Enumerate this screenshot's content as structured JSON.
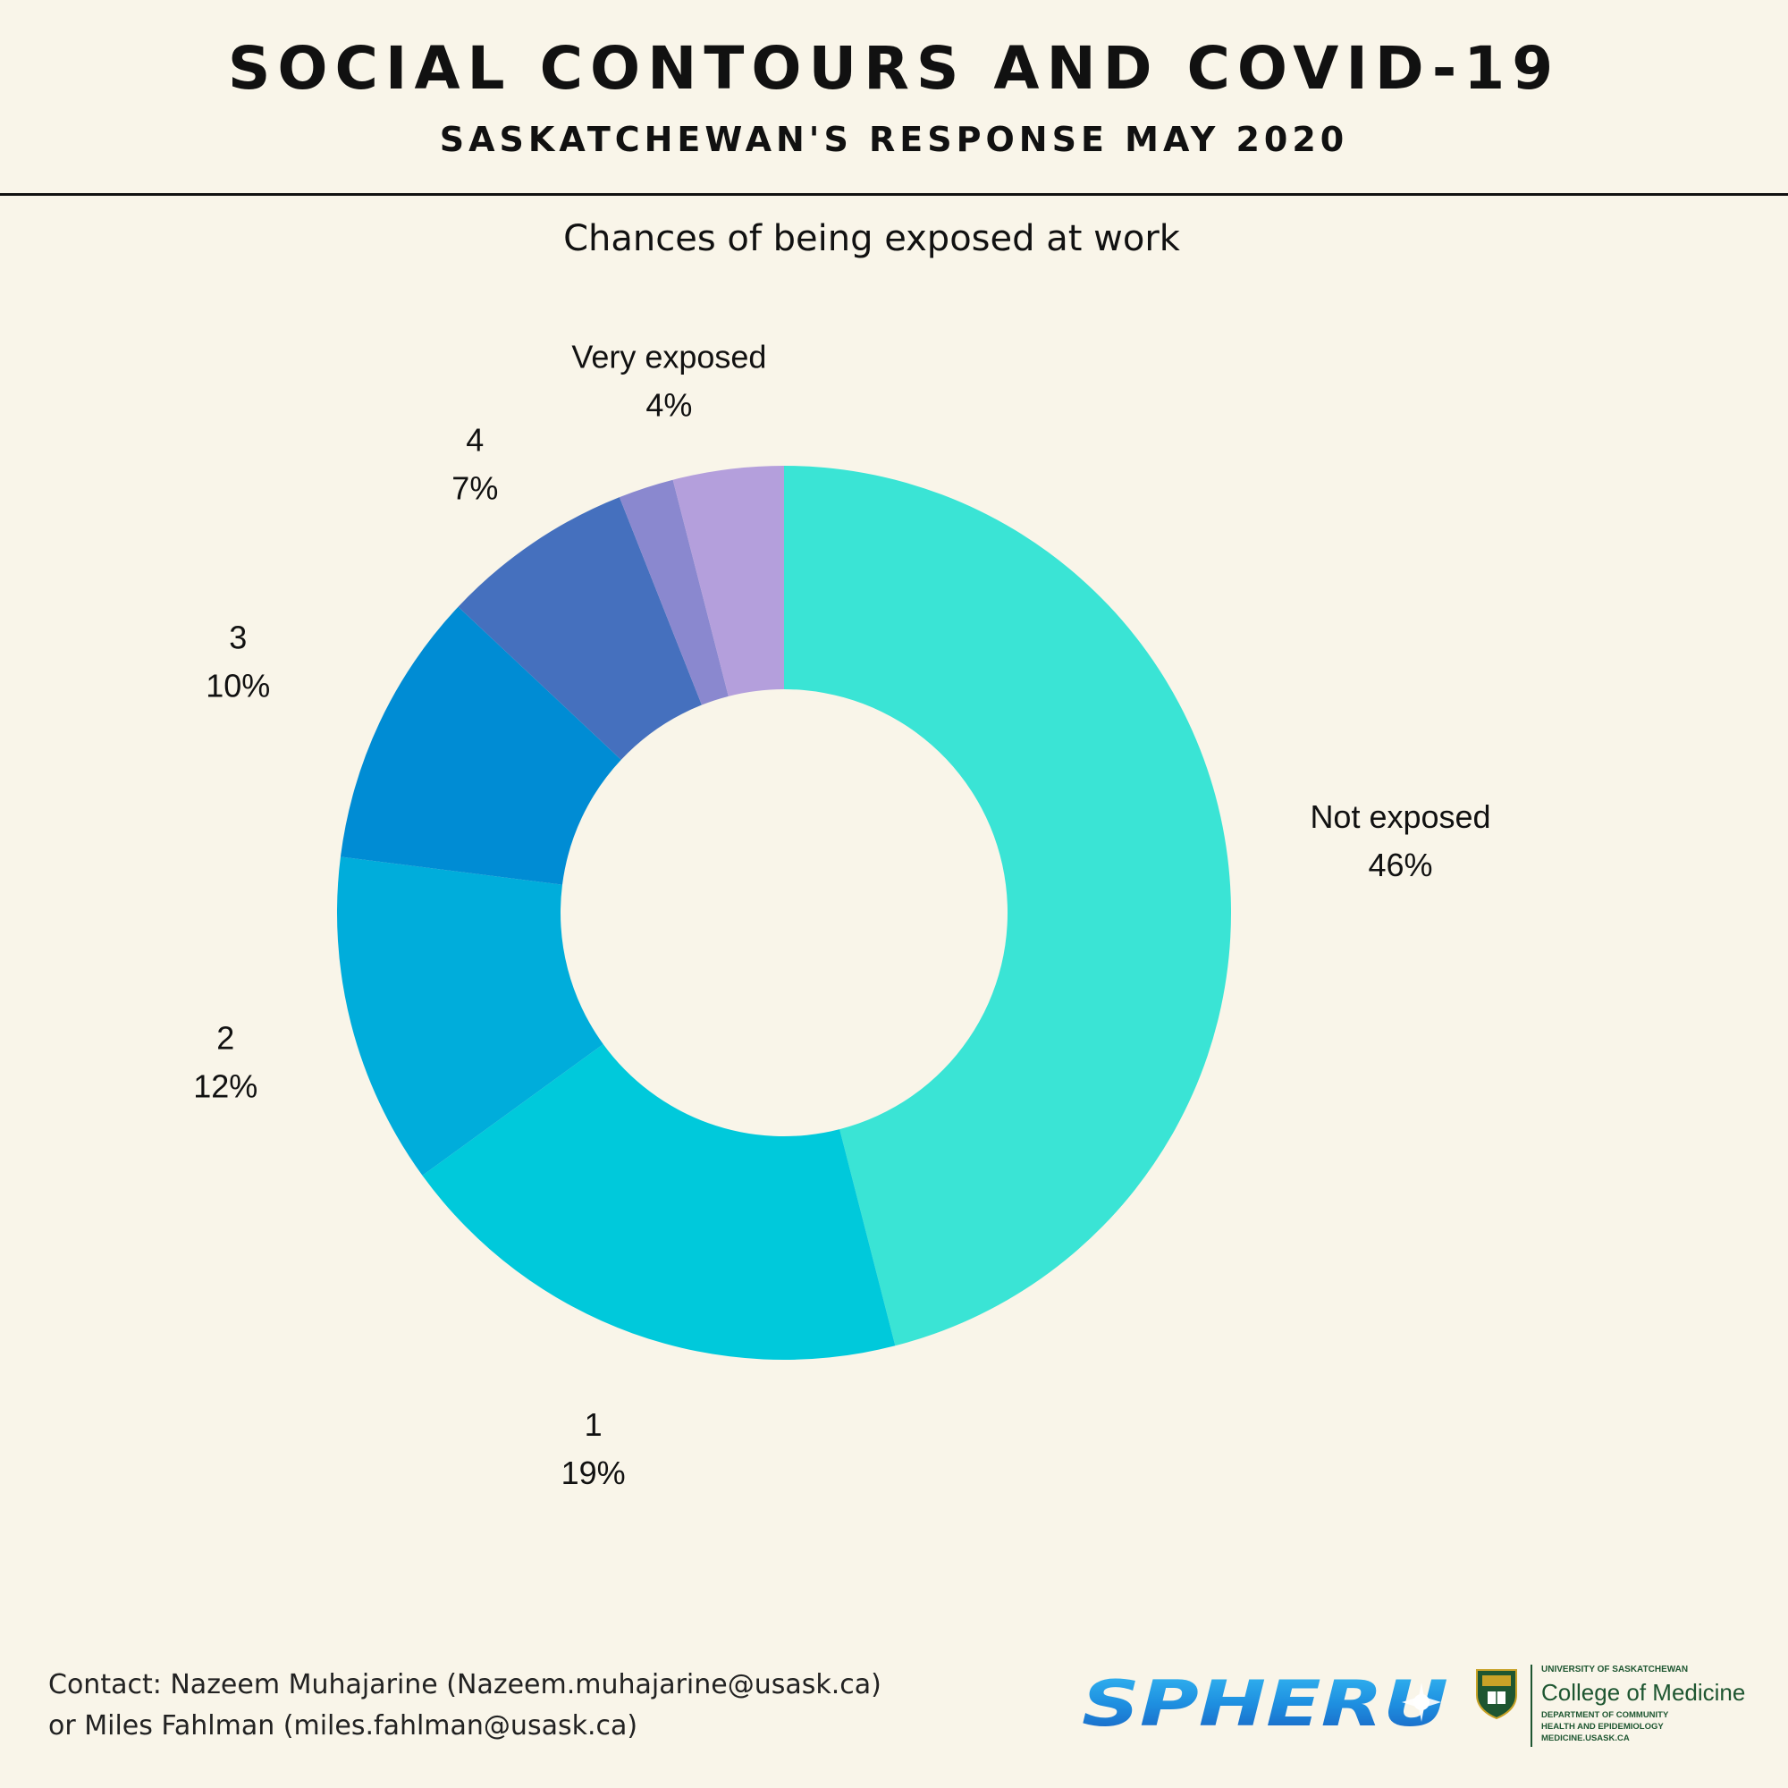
{
  "header": {
    "title": "SOCIAL CONTOURS AND COVID-19",
    "subtitle": "SASKATCHEWAN'S RESPONSE MAY 2020"
  },
  "chart_data": {
    "type": "pie",
    "title": "Chances of being exposed at work",
    "categories": [
      "Not exposed",
      "1",
      "2",
      "3",
      "4",
      "",
      "Very exposed"
    ],
    "values": [
      46,
      19,
      12,
      10,
      7,
      2,
      4
    ],
    "labels": [
      "46%",
      "19%",
      "12%",
      "10%",
      "7%",
      "",
      "4%"
    ],
    "colors": [
      "#3ae4d5",
      "#00c9db",
      "#00addb",
      "#008cd4",
      "#4570be",
      "#8a88cf",
      "#b49fdc"
    ],
    "hole": 0.5,
    "direction": "clockwise",
    "start": "top"
  },
  "footer": {
    "contact_line1": "Contact: Nazeem Muhajarine (Nazeem.muhajarine@usask.ca)",
    "contact_line2": "or Miles Fahlman (miles.fahlman@usask.ca)",
    "spheru_logo": "SPHERU",
    "usask_line1": "UNIVERSITY OF SASKATCHEWAN",
    "usask_line2": "College of Medicine",
    "usask_line3": "DEPARTMENT OF COMMUNITY",
    "usask_line4": "HEALTH AND EPIDEMIOLOGY",
    "usask_line5": "MEDICINE.USASK.CA"
  }
}
